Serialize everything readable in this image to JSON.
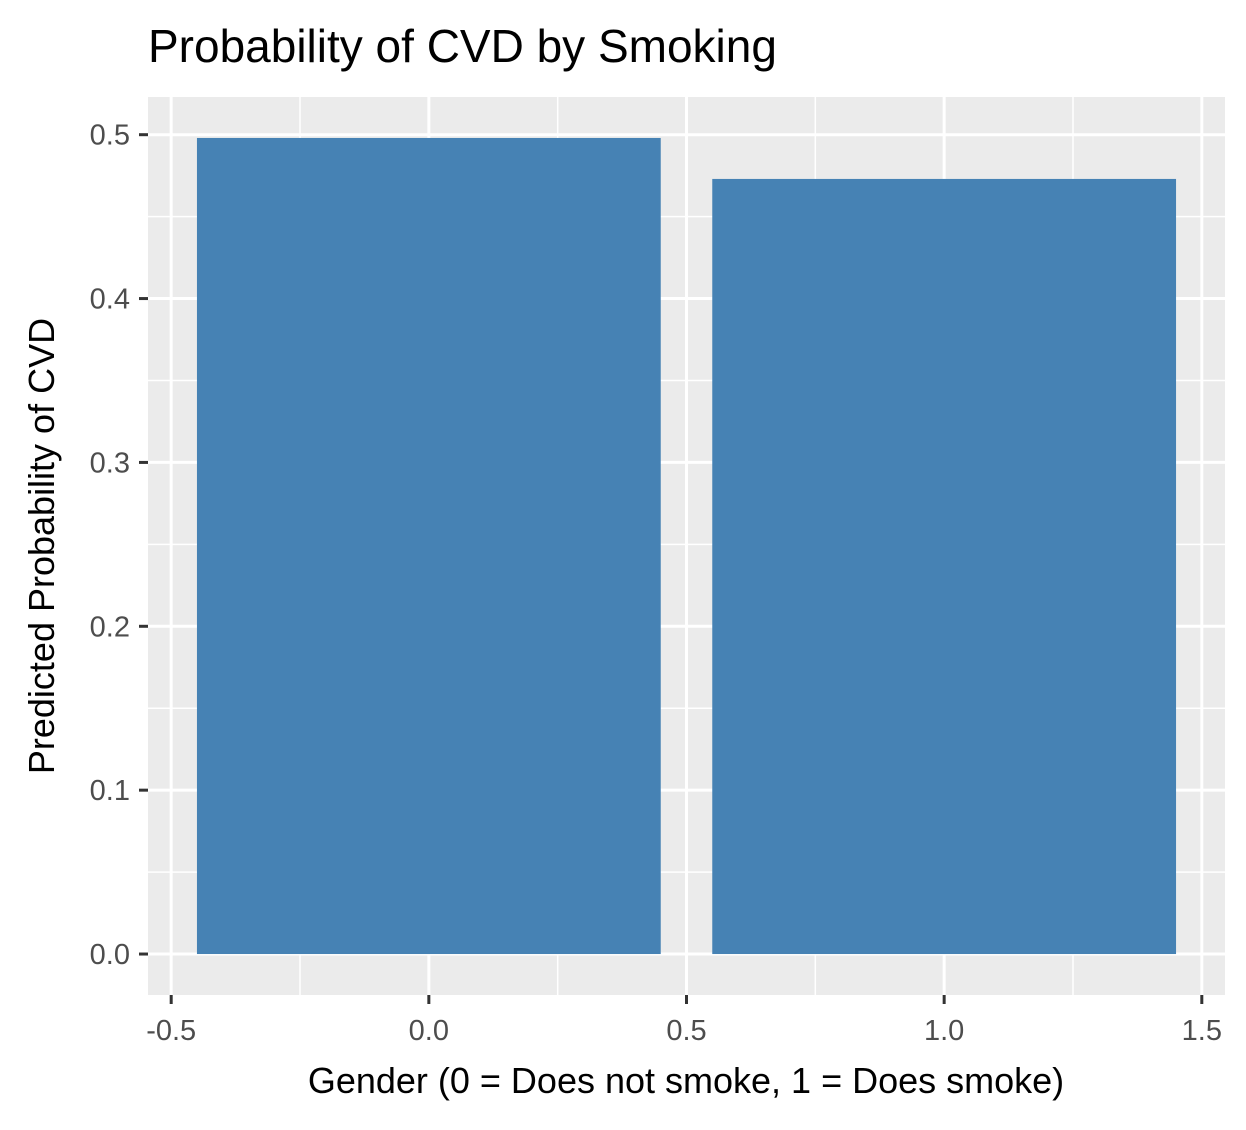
{
  "chart_data": {
    "type": "bar",
    "title": "Probability of CVD by Smoking",
    "xlabel": "Gender (0 = Does not smoke, 1 = Does smoke)",
    "ylabel": "Predicted Probability of CVD",
    "x": [
      0,
      1
    ],
    "values": [
      0.498,
      0.473
    ],
    "bar_width": 0.9,
    "xlim": [
      -0.545,
      1.545
    ],
    "ylim": [
      -0.025,
      0.523
    ],
    "x_ticks": [
      -0.5,
      0.0,
      0.5,
      1.0,
      1.5
    ],
    "x_tick_labels": [
      "-0.5",
      "0.0",
      "0.5",
      "1.0",
      "1.5"
    ],
    "y_ticks": [
      0.0,
      0.1,
      0.2,
      0.3,
      0.4,
      0.5
    ],
    "y_tick_labels": [
      "0.0",
      "0.1",
      "0.2",
      "0.3",
      "0.4",
      "0.5"
    ],
    "grid": true,
    "legend": "none",
    "colors": {
      "bar": "#4682B4",
      "panel_background": "#EBEBEB",
      "grid": "#FFFFFF",
      "tick": "#333333"
    }
  }
}
